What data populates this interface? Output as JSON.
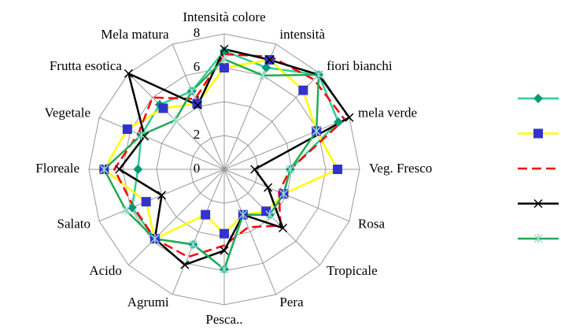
{
  "chart_data": {
    "type": "radar",
    "categories": [
      "Intensità colore",
      "intensità",
      "fiori bianchi",
      "mela verde",
      "Veg. Fresco",
      "Rosa",
      "Tropicale",
      "Pera",
      "Pesca..",
      "Agrumi",
      "Acido",
      "Salato",
      "Floreale",
      "Vegetale",
      "Frutta esotica",
      "Mela matura"
    ],
    "rlim": [
      0,
      8
    ],
    "rticks": [
      0,
      2,
      4,
      6,
      8
    ],
    "grid": true,
    "legend": "right",
    "series": [
      {
        "color": "#33cc99",
        "marker": "diamond",
        "marker_color": "#009977",
        "dash": false,
        "values": [
          7,
          6.5,
          7.9,
          7.3,
          3.9,
          3.8,
          3.8,
          2.9,
          5.9,
          4.8,
          5.8,
          5.9,
          5.1,
          5.3,
          5.4,
          5
        ]
      },
      {
        "color": "#ffff00",
        "marker": "square",
        "marker_color": "#3333cc",
        "dash": false,
        "values": [
          6,
          7,
          6.6,
          5.9,
          6.7,
          3.8,
          3.5,
          2.9,
          3.8,
          2.9,
          5.8,
          5,
          7.1,
          6.2,
          5.1,
          4.2
        ]
      },
      {
        "color": "#ff0000",
        "marker": "none",
        "marker_color": "#ff0000",
        "dash": true,
        "values": [
          6.8,
          7.2,
          7.5,
          7.7,
          3.9,
          3.5,
          4.7,
          3.7,
          4.5,
          5.6,
          5.8,
          5.8,
          6.5,
          5.5,
          6,
          4.5
        ]
      },
      {
        "color": "#000000",
        "marker": "x",
        "marker_color": "#000000",
        "dash": false,
        "values": [
          7.1,
          7,
          7.9,
          8,
          1.8,
          2.8,
          4.9,
          2.9,
          4.8,
          6.1,
          5.8,
          4,
          6.2,
          5.1,
          8,
          4.1
        ]
      },
      {
        "color": "#22aa55",
        "marker": "asterisk",
        "marker_color": "#99ddcc",
        "dash": false,
        "values": [
          6.5,
          6,
          7.9,
          5.9,
          3.9,
          3.8,
          3.8,
          2.9,
          5.9,
          4.8,
          5.8,
          6.3,
          7.1,
          5.3,
          4.1,
          5
        ]
      }
    ]
  }
}
